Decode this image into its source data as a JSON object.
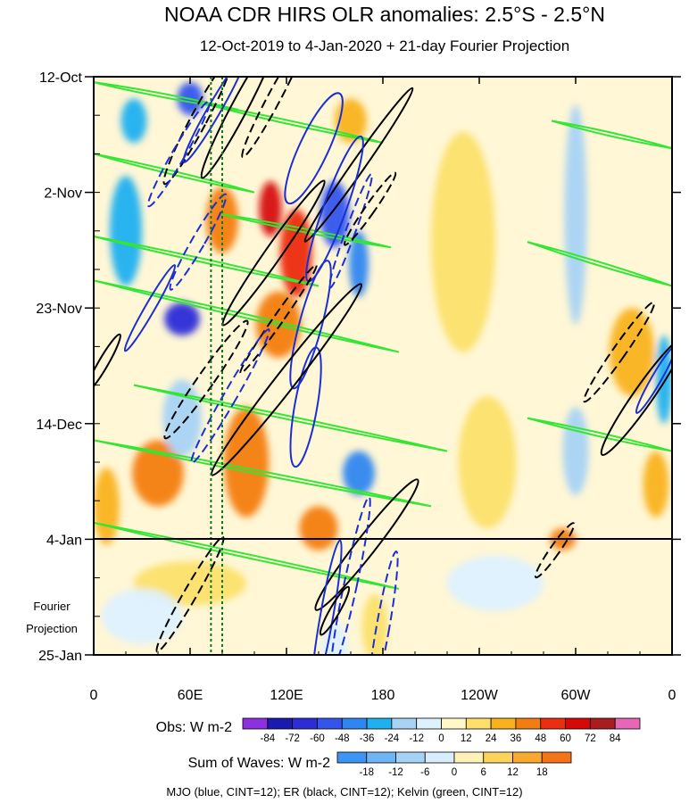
{
  "chart_data": {
    "type": "heatmap",
    "title": "NOAA CDR HIRS OLR anomalies: 2.5°S - 2.5°N",
    "subtitle": "12-Oct-2019 to 4-Jan-2020 + 21-day Fourier Projection",
    "x_ticks": [
      "0",
      "60E",
      "120E",
      "180",
      "120W",
      "60W",
      "0"
    ],
    "x_tick_lon": [
      0,
      60,
      120,
      180,
      240,
      300,
      360
    ],
    "y_ticks": [
      "12-Oct",
      "2-Nov",
      "23-Nov",
      "14-Dec",
      "4-Jan",
      "25-Jan"
    ],
    "y_tick_day": [
      0,
      21,
      42,
      63,
      84,
      105
    ],
    "projection_label_1": "Fourier",
    "projection_label_2": "Projection",
    "projection_start_day": 84,
    "mjo_reference_lons": [
      73,
      80
    ],
    "obs_label": "Obs: W m-2",
    "obs_levels": [
      "-84",
      "-72",
      "-60",
      "-48",
      "-36",
      "-24",
      "-12",
      "0",
      "12",
      "24",
      "36",
      "48",
      "60",
      "72",
      "84"
    ],
    "obs_colors": [
      "#8c30e0",
      "#1a1ab0",
      "#2d2dd8",
      "#3355ee",
      "#2f86f0",
      "#1fb0f0",
      "#a8d3f5",
      "#ddf1ff",
      "#fff7c8",
      "#fce06a",
      "#f9b21e",
      "#f37d10",
      "#ec2d10",
      "#d60808",
      "#a81e1e",
      "#e867b5"
    ],
    "waves_label": "Sum of Waves: W m-2",
    "waves_levels": [
      "-18",
      "-12",
      "-6",
      "0",
      "6",
      "12",
      "18"
    ],
    "waves_colors": [
      "#3d94f2",
      "#6fb4f5",
      "#a6d2f6",
      "#d8eefc",
      "#fff2b8",
      "#fcd45c",
      "#f9a830",
      "#f47418"
    ],
    "footnote": "MJO (blue, CINT=12); ER (black, CINT=12); Kelvin (green, CINT=12)",
    "series_colors": {
      "mjo": "#1a2fd6",
      "er": "#000000",
      "kelvin": "#33e633"
    },
    "anomaly_regions": [
      {
        "lon": 60,
        "day": 4,
        "value": -60,
        "slon": 8,
        "sday": 3
      },
      {
        "lon": 25,
        "day": 8,
        "value": -36,
        "slon": 8,
        "sday": 4
      },
      {
        "lon": 110,
        "day": 24,
        "value": 60,
        "slon": 7,
        "sday": 5
      },
      {
        "lon": 126,
        "day": 32,
        "value": 48,
        "slon": 10,
        "sday": 8
      },
      {
        "lon": 150,
        "day": 25,
        "value": -60,
        "slon": 9,
        "sday": 6
      },
      {
        "lon": 165,
        "day": 34,
        "value": -48,
        "slon": 6,
        "sday": 6
      },
      {
        "lon": 80,
        "day": 26,
        "value": 36,
        "slon": 10,
        "sday": 6
      },
      {
        "lon": 55,
        "day": 44,
        "value": -72,
        "slon": 11,
        "sday": 3
      },
      {
        "lon": 20,
        "day": 28,
        "value": -36,
        "slon": 10,
        "sday": 10
      },
      {
        "lon": 115,
        "day": 45,
        "value": 36,
        "slon": 14,
        "sday": 6
      },
      {
        "lon": 95,
        "day": 70,
        "value": 36,
        "slon": 14,
        "sday": 10
      },
      {
        "lon": 40,
        "day": 72,
        "value": 36,
        "slon": 16,
        "sday": 6
      },
      {
        "lon": 165,
        "day": 72,
        "value": -48,
        "slon": 10,
        "sday": 4
      },
      {
        "lon": 140,
        "day": 82,
        "value": 36,
        "slon": 12,
        "sday": 4
      },
      {
        "lon": 55,
        "day": 62,
        "value": -24,
        "slon": 12,
        "sday": 7
      },
      {
        "lon": 335,
        "day": 50,
        "value": 24,
        "slon": 14,
        "sday": 8
      },
      {
        "lon": 355,
        "day": 55,
        "value": -36,
        "slon": 5,
        "sday": 8
      },
      {
        "lon": 350,
        "day": 74,
        "value": 24,
        "slon": 8,
        "sday": 6
      },
      {
        "lon": 300,
        "day": 25,
        "value": -24,
        "slon": 7,
        "sday": 20
      },
      {
        "lon": 300,
        "day": 68,
        "value": -24,
        "slon": 8,
        "sday": 8
      },
      {
        "lon": 292,
        "day": 84,
        "value": 36,
        "slon": 8,
        "sday": 2
      },
      {
        "lon": 230,
        "day": 30,
        "value": 12,
        "slon": 20,
        "sday": 20
      },
      {
        "lon": 245,
        "day": 70,
        "value": 12,
        "slon": 18,
        "sday": 12
      },
      {
        "lon": 8,
        "day": 78,
        "value": 24,
        "slon": 8,
        "sday": 7
      },
      {
        "lon": 160,
        "day": 8,
        "value": 24,
        "slon": 10,
        "sday": 4
      },
      {
        "lon": 60,
        "day": 92,
        "value": 12,
        "slon": 35,
        "sday": 4
      },
      {
        "lon": 175,
        "day": 100,
        "value": 12,
        "slon": 8,
        "sday": 6
      },
      {
        "lon": 30,
        "day": 98,
        "value": -6,
        "slon": 25,
        "sday": 5
      },
      {
        "lon": 250,
        "day": 92,
        "value": -6,
        "slon": 30,
        "sday": 5
      },
      {
        "lon": 150,
        "day": 104,
        "value": -12,
        "slon": 8,
        "sday": 5
      }
    ],
    "contours": [
      {
        "type": "er",
        "dash": false,
        "lon": 90,
        "day": 6,
        "rx": 5,
        "ry": 14,
        "rot": 28
      },
      {
        "type": "er",
        "dash": true,
        "lon": 65,
        "day": 8,
        "rx": 5,
        "ry": 13,
        "rot": 28
      },
      {
        "type": "er",
        "dash": true,
        "lon": 112,
        "day": 4,
        "rx": 4,
        "ry": 12,
        "rot": 28
      },
      {
        "type": "mjo",
        "dash": false,
        "lon": 75,
        "day": 6,
        "rx": 4,
        "ry": 11,
        "rot": 30
      },
      {
        "type": "mjo",
        "dash": true,
        "lon": 53,
        "day": 14,
        "rx": 4,
        "ry": 11,
        "rot": 30
      },
      {
        "type": "mjo",
        "dash": false,
        "lon": 137,
        "day": 13,
        "rx": 9,
        "ry": 11,
        "rot": 25
      },
      {
        "type": "er",
        "dash": false,
        "lon": 165,
        "day": 16,
        "rx": 4,
        "ry": 17,
        "rot": 35
      },
      {
        "type": "mjo",
        "dash": false,
        "lon": 150,
        "day": 24,
        "rx": 7,
        "ry": 14,
        "rot": 20
      },
      {
        "type": "mjo",
        "dash": true,
        "lon": 160,
        "day": 28,
        "rx": 3,
        "ry": 11,
        "rot": 20
      },
      {
        "type": "er",
        "dash": true,
        "lon": 172,
        "day": 24,
        "rx": 3,
        "ry": 8,
        "rot": 35
      },
      {
        "type": "er",
        "dash": false,
        "lon": 112,
        "day": 32,
        "rx": 5,
        "ry": 16,
        "rot": 35
      },
      {
        "type": "mjo",
        "dash": true,
        "lon": 65,
        "day": 30,
        "rx": 4,
        "ry": 10,
        "rot": 30
      },
      {
        "type": "er",
        "dash": true,
        "lon": 115,
        "day": 44,
        "rx": 3,
        "ry": 12,
        "rot": 35
      },
      {
        "type": "mjo",
        "dash": false,
        "lon": 35,
        "day": 42,
        "rx": 3,
        "ry": 9,
        "rot": 30
      },
      {
        "type": "mjo",
        "dash": false,
        "lon": 135,
        "day": 45,
        "rx": 7,
        "ry": 12,
        "rot": 15
      },
      {
        "type": "mjo",
        "dash": false,
        "lon": 132,
        "day": 60,
        "rx": 7,
        "ry": 11,
        "rot": 10
      },
      {
        "type": "er",
        "dash": false,
        "lon": 120,
        "day": 55,
        "rx": 6,
        "ry": 22,
        "rot": 38
      },
      {
        "type": "er",
        "dash": true,
        "lon": 70,
        "day": 55,
        "rx": 5,
        "ry": 13,
        "rot": 35
      },
      {
        "type": "mjo",
        "dash": true,
        "lon": 85,
        "day": 58,
        "rx": 4,
        "ry": 14,
        "rot": 30
      },
      {
        "type": "er",
        "dash": false,
        "lon": 6,
        "day": 52,
        "rx": 3,
        "ry": 6,
        "rot": 30
      },
      {
        "type": "er",
        "dash": false,
        "lon": 170,
        "day": 85,
        "rx": 6,
        "ry": 15,
        "rot": 38
      },
      {
        "type": "mjo",
        "dash": true,
        "lon": 160,
        "day": 92,
        "rx": 4,
        "ry": 16,
        "rot": 12
      },
      {
        "type": "mjo",
        "dash": false,
        "lon": 145,
        "day": 98,
        "rx": 4,
        "ry": 14,
        "rot": 10
      },
      {
        "type": "mjo",
        "dash": true,
        "lon": 180,
        "day": 100,
        "rx": 4,
        "ry": 14,
        "rot": 10
      },
      {
        "type": "er",
        "dash": true,
        "lon": 60,
        "day": 94,
        "rx": 4,
        "ry": 12,
        "rot": 30
      },
      {
        "type": "er",
        "dash": false,
        "lon": 150,
        "day": 97,
        "rx": 3,
        "ry": 5,
        "rot": 30
      },
      {
        "type": "er",
        "dash": true,
        "lon": 327,
        "day": 50,
        "rx": 4,
        "ry": 11,
        "rot": 35
      },
      {
        "type": "er",
        "dash": false,
        "lon": 342,
        "day": 58,
        "rx": 6,
        "ry": 13,
        "rot": 35
      },
      {
        "type": "mjo",
        "dash": false,
        "lon": 350,
        "day": 55,
        "rx": 3,
        "ry": 7,
        "rot": 30
      },
      {
        "type": "er",
        "dash": true,
        "lon": 287,
        "day": 86,
        "rx": 3,
        "ry": 6,
        "rot": 35
      }
    ],
    "kelvin_bands": [
      {
        "lon0": 0,
        "day0": 1,
        "lon1": 90,
        "day1": 6
      },
      {
        "lon0": 0,
        "day0": 14,
        "lon1": 100,
        "day1": 21
      },
      {
        "lon0": 0,
        "day0": 29,
        "lon1": 140,
        "day1": 38
      },
      {
        "lon0": 0,
        "day0": 37,
        "lon1": 190,
        "day1": 50
      },
      {
        "lon0": 25,
        "day0": 56,
        "lon1": 220,
        "day1": 68
      },
      {
        "lon0": 0,
        "day0": 66,
        "lon1": 210,
        "day1": 78
      },
      {
        "lon0": 0,
        "day0": 81,
        "lon1": 190,
        "day1": 93
      },
      {
        "lon0": 285,
        "day0": 8,
        "lon1": 360,
        "day1": 13
      },
      {
        "lon0": 270,
        "day0": 30,
        "lon1": 360,
        "day1": 38
      },
      {
        "lon0": 270,
        "day0": 62,
        "lon1": 360,
        "day1": 68
      },
      {
        "lon0": 80,
        "day0": 25,
        "lon1": 185,
        "day1": 31
      },
      {
        "lon0": 70,
        "day0": 5,
        "lon1": 180,
        "day1": 12
      }
    ]
  }
}
